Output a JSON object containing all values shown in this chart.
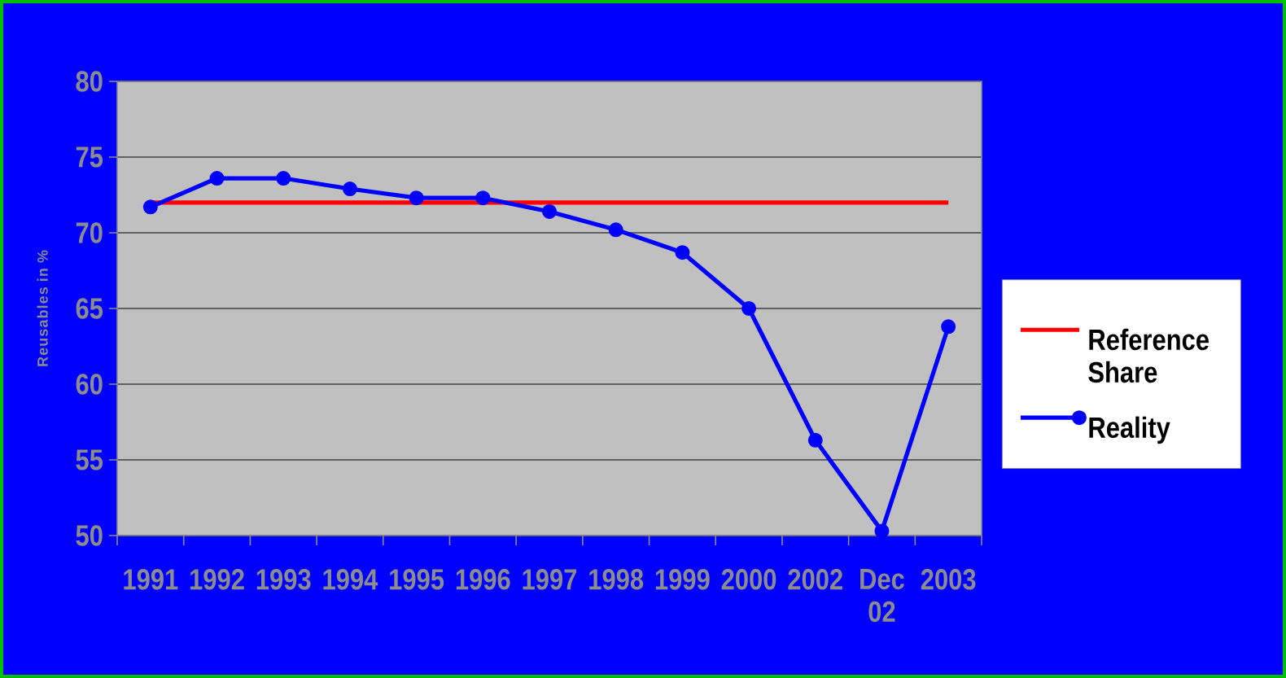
{
  "chart_data": {
    "type": "line",
    "ylabel": "Reusables in %",
    "categories": [
      "1991",
      "1992",
      "1993",
      "1994",
      "1995",
      "1996",
      "1997",
      "1998",
      "1999",
      "2000",
      "2002",
      "Dec 02",
      "2003"
    ],
    "series": [
      {
        "name": "Reference Share",
        "color": "#ff0000",
        "marker": "none",
        "values": [
          72,
          72,
          72,
          72,
          72,
          72,
          72,
          72,
          72,
          72,
          72,
          72,
          72
        ]
      },
      {
        "name": "Reality",
        "color": "#0000ff",
        "marker": "circle",
        "values": [
          71.7,
          73.6,
          73.6,
          72.9,
          72.3,
          72.3,
          71.4,
          70.2,
          68.7,
          65,
          56.3,
          50.3,
          63.8
        ]
      }
    ],
    "ylim": [
      50,
      80
    ],
    "yticks": [
      50,
      55,
      60,
      65,
      70,
      75,
      80
    ],
    "grid": "y",
    "legend": "right"
  }
}
